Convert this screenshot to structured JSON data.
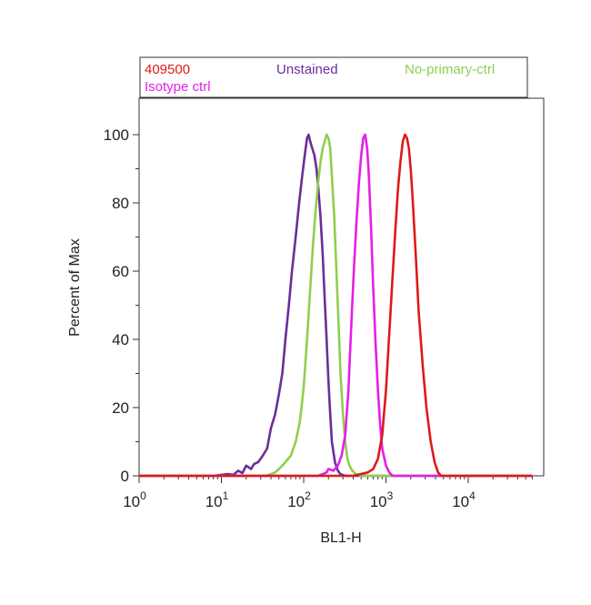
{
  "chart_data": {
    "type": "line",
    "title": "",
    "xlabel": "BL1-H",
    "ylabel": "Percent of Max",
    "x_scale": "log10",
    "xlim": [
      1,
      60000
    ],
    "ylim": [
      0,
      108
    ],
    "y_ticks": [
      0,
      20,
      40,
      60,
      80,
      100
    ],
    "x_ticks": [
      {
        "base": "10",
        "exp": "0"
      },
      {
        "base": "10",
        "exp": "1"
      },
      {
        "base": "10",
        "exp": "2"
      },
      {
        "base": "10",
        "exp": "3"
      },
      {
        "base": "10",
        "exp": "4"
      }
    ],
    "grid": false,
    "legend_position": "top",
    "series": [
      {
        "name": "Unstained",
        "color": "#6a2e9a",
        "x": [
          1,
          8,
          12,
          14,
          16,
          18,
          20,
          23,
          25,
          28,
          32,
          36,
          40,
          45,
          50,
          55,
          60,
          66,
          72,
          80,
          88,
          96,
          103,
          110,
          115,
          120,
          127,
          135,
          143,
          150,
          160,
          170,
          180,
          190,
          200,
          210,
          220,
          240,
          260,
          280,
          320,
          400,
          60000
        ],
        "y": [
          0,
          0,
          0.5,
          0.3,
          1.5,
          0.8,
          3,
          2,
          3.5,
          4,
          6,
          8,
          14,
          18,
          24,
          30,
          40,
          50,
          60,
          70,
          80,
          88,
          94,
          99,
          100,
          98,
          96,
          94,
          90,
          85,
          76,
          65,
          52,
          40,
          28,
          18,
          10,
          4,
          1.5,
          0.5,
          0,
          0,
          0
        ]
      },
      {
        "name": "No-primary-ctrl",
        "color": "#8fcf4f",
        "x": [
          1,
          35,
          40,
          45,
          50,
          55,
          60,
          70,
          80,
          90,
          100,
          110,
          120,
          130,
          140,
          150,
          160,
          170,
          180,
          190,
          200,
          210,
          220,
          235,
          250,
          265,
          280,
          300,
          320,
          340,
          360,
          390,
          430,
          500,
          60000
        ],
        "y": [
          0,
          0,
          0.5,
          1,
          2,
          3,
          4,
          6,
          10,
          16,
          26,
          40,
          55,
          68,
          78,
          86,
          92,
          96,
          98,
          100,
          99,
          96,
          88,
          76,
          60,
          45,
          30,
          18,
          10,
          5,
          3,
          1.5,
          0.5,
          0,
          0
        ]
      },
      {
        "name": "Isotype ctrl",
        "color": "#e61ee6",
        "x": [
          1,
          150,
          170,
          190,
          200,
          230,
          260,
          290,
          320,
          350,
          380,
          410,
          440,
          470,
          500,
          530,
          560,
          590,
          620,
          660,
          700,
          750,
          800,
          850,
          900,
          1000,
          1100,
          1200,
          60000
        ],
        "y": [
          0,
          0,
          0.5,
          1,
          2,
          1.5,
          3,
          6,
          12,
          25,
          45,
          62,
          75,
          86,
          94,
          99,
          100,
          96,
          88,
          72,
          55,
          38,
          25,
          15,
          8,
          3,
          1,
          0,
          0
        ]
      },
      {
        "name": "409500",
        "color": "#dd1a1a",
        "x": [
          1,
          400,
          600,
          700,
          800,
          900,
          1000,
          1100,
          1200,
          1300,
          1400,
          1500,
          1600,
          1700,
          1800,
          1900,
          2000,
          2100,
          2300,
          2500,
          2800,
          3100,
          3500,
          3900,
          4300,
          4700,
          60000
        ],
        "y": [
          0,
          0,
          1,
          2,
          5,
          12,
          25,
          42,
          58,
          72,
          84,
          92,
          98,
          100,
          99,
          96,
          90,
          82,
          65,
          48,
          32,
          20,
          10,
          4,
          1,
          0,
          0
        ]
      }
    ]
  },
  "legend": {
    "row1": [
      {
        "label": "409500",
        "color": "#dd1a1a"
      },
      {
        "label": "Unstained",
        "color": "#6a2e9a"
      },
      {
        "label": "No-primary-ctrl",
        "color": "#8fcf4f"
      }
    ],
    "row2": [
      {
        "label": "Isotype ctrl",
        "color": "#e61ee6"
      }
    ]
  }
}
